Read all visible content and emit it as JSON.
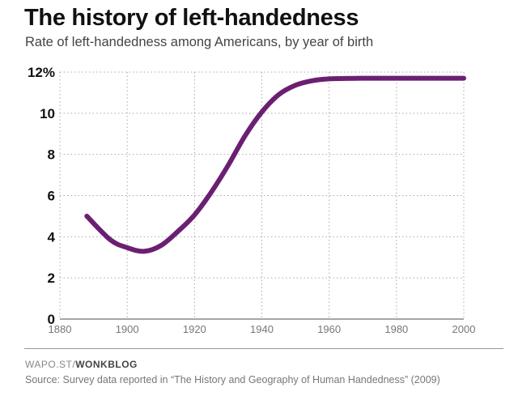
{
  "header": {
    "title": "The history of left-handedness",
    "subtitle": "Rate of left-handedness among Americans, by year of birth"
  },
  "footer": {
    "credit_prefix": "WAPO.ST/",
    "credit_brand": "WONKBLOG",
    "source": "Source: Survey data reported in “The History and Geography of Human Handedness” (2009)"
  },
  "chart_data": {
    "type": "line",
    "title": "The history of left-handedness",
    "subtitle": "Rate of left-handedness among Americans, by year of birth",
    "xlabel": "",
    "ylabel": "",
    "xlim": [
      1880,
      2000
    ],
    "ylim": [
      0,
      12
    ],
    "x_ticks": [
      "1880",
      "1900",
      "1920",
      "1940",
      "1960",
      "1980",
      "2000"
    ],
    "y_ticks": [
      "0",
      "2",
      "4",
      "6",
      "8",
      "10",
      "12%"
    ],
    "grid": true,
    "line_color": "#6b1f73",
    "series": [
      {
        "x": [
          1888,
          1895,
          1900,
          1905,
          1910,
          1915,
          1920,
          1925,
          1930,
          1935,
          1940,
          1945,
          1950,
          1955,
          1960,
          1970,
          1980,
          1990,
          2000
        ],
        "y": [
          5.0,
          3.85,
          3.47,
          3.29,
          3.57,
          4.25,
          5.06,
          6.17,
          7.47,
          8.9,
          10.06,
          10.9,
          11.36,
          11.58,
          11.67,
          11.7,
          11.7,
          11.7,
          11.7
        ]
      }
    ]
  }
}
